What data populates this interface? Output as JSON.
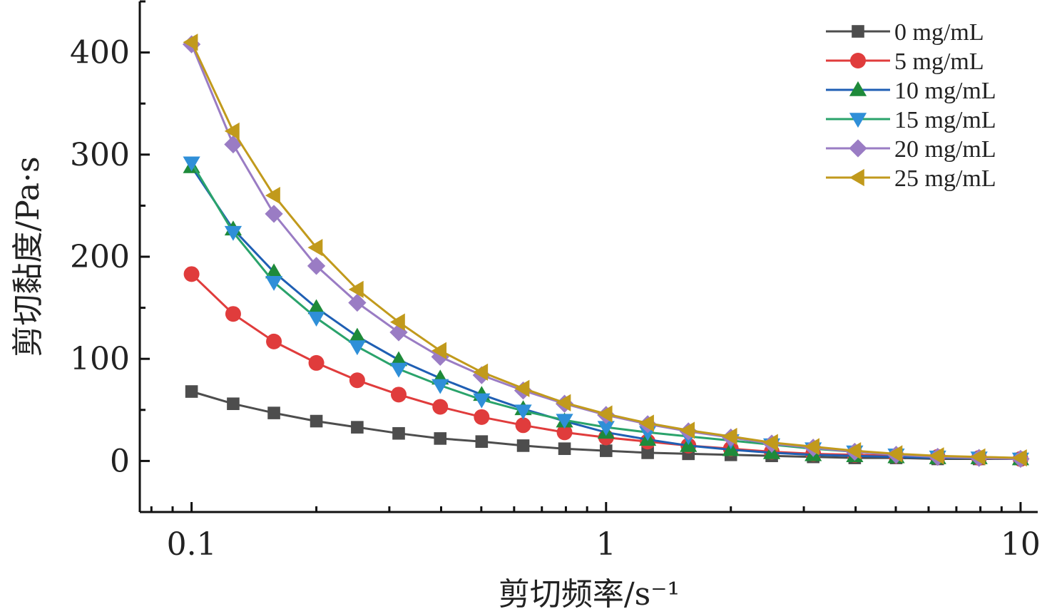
{
  "chart_data": {
    "type": "line",
    "xlabel": "剪切频率/s⁻¹",
    "ylabel": "剪切黏度/Pa·s",
    "x_scale": "log",
    "xlim": [
      0.075,
      11
    ],
    "ylim": [
      -50,
      450
    ],
    "x_ticks": [
      0.1,
      1,
      10
    ],
    "x_tick_labels": [
      "0.1",
      "1",
      "10"
    ],
    "y_ticks": [
      0,
      100,
      200,
      300,
      400
    ],
    "y_tick_labels": [
      "0",
      "100",
      "200",
      "300",
      "400"
    ],
    "grid": false,
    "legend_position": "top-right",
    "x": [
      0.1,
      0.126,
      0.158,
      0.2,
      0.251,
      0.316,
      0.398,
      0.501,
      0.631,
      0.794,
      1,
      1.26,
      1.58,
      2,
      2.51,
      3.16,
      3.98,
      5.01,
      6.31,
      7.94,
      10
    ],
    "series": [
      {
        "name": "0 mg/mL",
        "color": "#4d4d4d",
        "marker": "square",
        "values": [
          68,
          56,
          47,
          39,
          33,
          27,
          22,
          19,
          15,
          12,
          10,
          8,
          7,
          6,
          5,
          4,
          3,
          3,
          2,
          2,
          2
        ]
      },
      {
        "name": "5 mg/mL",
        "color": "#e03c3c",
        "marker": "circle",
        "values": [
          183,
          144,
          117,
          96,
          79,
          65,
          53,
          43,
          35,
          28,
          23,
          19,
          15,
          12,
          9,
          7,
          6,
          5,
          4,
          3,
          2
        ]
      },
      {
        "name": "10 mg/mL",
        "color": "#1f5fb4",
        "marker": "triangle-up",
        "marker_color": "#1e8a3a",
        "values": [
          288,
          227,
          185,
          150,
          122,
          99,
          81,
          65,
          51,
          39,
          28,
          21,
          15,
          11,
          8,
          6,
          5,
          4,
          3,
          3,
          2
        ]
      },
      {
        "name": "15 mg/mL",
        "color": "#2aa36b",
        "marker": "triangle-down",
        "marker_color": "#2f8fd8",
        "values": [
          292,
          224,
          175,
          140,
          112,
          90,
          74,
          60,
          49,
          40,
          33,
          28,
          24,
          20,
          16,
          12,
          9,
          6,
          4,
          3,
          2
        ]
      },
      {
        "name": "20 mg/mL",
        "color": "#9a7cc4",
        "marker": "diamond",
        "values": [
          408,
          310,
          242,
          191,
          155,
          126,
          102,
          84,
          69,
          56,
          45,
          36,
          29,
          23,
          17,
          13,
          9,
          6,
          4,
          3,
          2
        ]
      },
      {
        "name": "25 mg/mL",
        "color": "#c19a1c",
        "marker": "triangle-left",
        "values": [
          410,
          323,
          260,
          209,
          168,
          136,
          108,
          87,
          71,
          57,
          46,
          37,
          30,
          24,
          18,
          14,
          10,
          7,
          5,
          4,
          3
        ]
      }
    ]
  }
}
